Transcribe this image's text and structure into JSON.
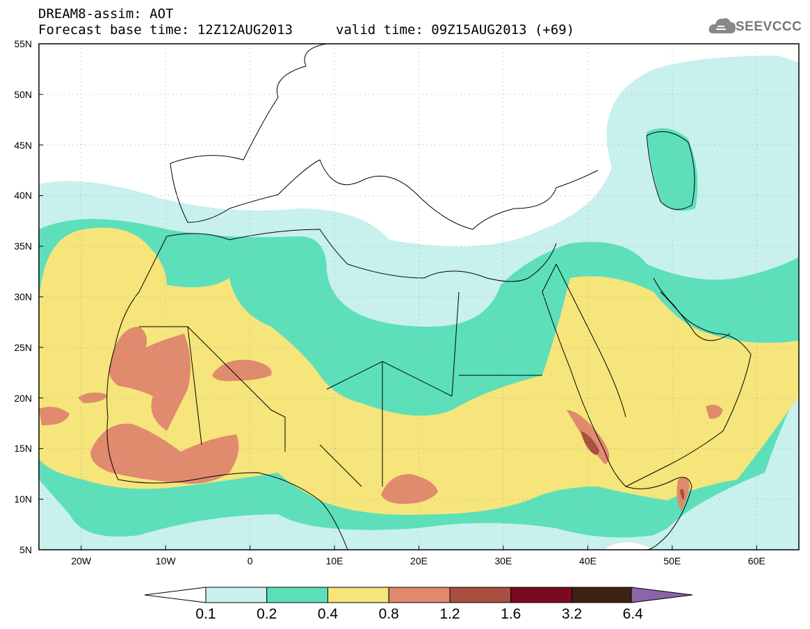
{
  "header": {
    "line1": "DREAM8-assim: AOT",
    "line2": "Forecast base time: 12Z12AUG2013",
    "line2b": "valid time: 09Z15AUG2013 (+69)"
  },
  "logo": {
    "text": "SEEVCCC",
    "icon": "cloud-icon"
  },
  "map": {
    "lat_labels": [
      "55N",
      "50N",
      "45N",
      "40N",
      "35N",
      "30N",
      "25N",
      "20N",
      "15N",
      "10N",
      "5N"
    ],
    "lon_labels": [
      "20W",
      "10W",
      "0",
      "10E",
      "20E",
      "30E",
      "40E",
      "50E",
      "60E"
    ],
    "lat_range": [
      5,
      55
    ],
    "lon_range": [
      -25,
      65
    ],
    "grid": "dotted"
  },
  "colorbar": {
    "labels": [
      "0.1",
      "0.2",
      "0.4",
      "0.8",
      "1.2",
      "1.6",
      "3.2",
      "6.4"
    ],
    "colors": [
      "#c8f0ec",
      "#5ddfba",
      "#f5e57a",
      "#e08a6e",
      "#a8503f",
      "#7a0a22",
      "#3c2212",
      "#8c64a8"
    ],
    "under_color": "#ffffff"
  }
}
